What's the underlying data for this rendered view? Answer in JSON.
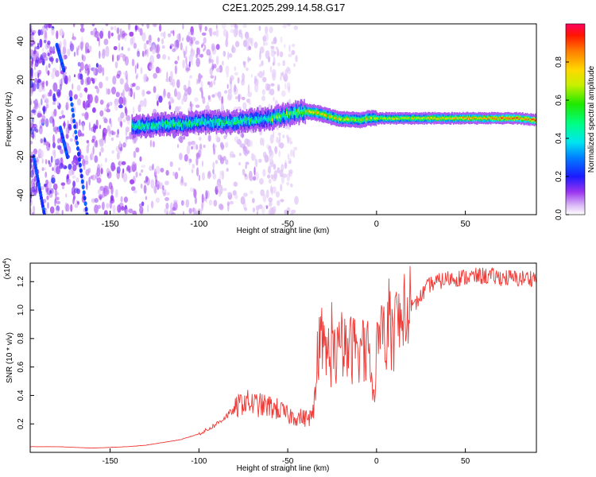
{
  "title": "C2E1.2025.299.14.58.G17",
  "chart_data": [
    {
      "type": "heatmap",
      "xlabel": "Height of straight line (km)",
      "ylabel": "Frequency (Hz)",
      "xlim": [
        -195,
        90
      ],
      "ylim": [
        -50,
        49
      ],
      "xticks": [
        -150,
        -100,
        -50,
        0,
        50
      ],
      "yticks": [
        -40,
        -20,
        0,
        20,
        40
      ],
      "ridge": {
        "x": [
          -138,
          -130,
          -120,
          -110,
          -100,
          -90,
          -80,
          -70,
          -60,
          -50,
          -45,
          -40,
          -35,
          -30,
          -25,
          -20,
          -15,
          -10,
          -5,
          0,
          20,
          40,
          60,
          80,
          90
        ],
        "freq": [
          -4,
          -4,
          -3,
          -3,
          -2,
          -2,
          -2,
          -1,
          0,
          2,
          3,
          3.5,
          3,
          2,
          0.5,
          -0.5,
          -0.5,
          -1,
          0,
          0,
          0,
          0,
          0,
          0,
          -1
        ]
      },
      "colorbar": {
        "label": "Normalized spectral amplitude",
        "range": [
          0,
          1
        ],
        "ticks": [
          0.0,
          0.2,
          0.4,
          0.6,
          0.8
        ]
      }
    },
    {
      "type": "line",
      "xlabel": "Height of straight line (km)",
      "ylabel": "SNR (10 * v/v)",
      "yscale_label": "(x10",
      "yscale_exp": "4",
      "xlim": [
        -195,
        90
      ],
      "ylim": [
        0,
        1.33
      ],
      "xticks": [
        -150,
        -100,
        -50,
        0,
        50
      ],
      "yticks": [
        "0.2",
        "0.4",
        "0.6",
        "0.8",
        "1.0",
        "1.2"
      ],
      "series": [
        {
          "name": "SNR",
          "color": "#ef3a36",
          "x": [
            -195,
            -180,
            -160,
            -140,
            -130,
            -120,
            -110,
            -100,
            -95,
            -90,
            -85,
            -80,
            -75,
            -70,
            -65,
            -60,
            -55,
            -50,
            -45,
            -40,
            -36,
            -33,
            -30,
            -25,
            -20,
            -15,
            -10,
            -5,
            -2,
            0,
            5,
            10,
            15,
            20,
            25,
            30,
            35,
            40,
            50,
            60,
            70,
            80,
            90
          ],
          "y": [
            0.04,
            0.04,
            0.03,
            0.04,
            0.05,
            0.07,
            0.09,
            0.13,
            0.16,
            0.2,
            0.25,
            0.3,
            0.36,
            0.34,
            0.33,
            0.32,
            0.3,
            0.26,
            0.25,
            0.24,
            0.25,
            0.55,
            0.72,
            0.68,
            0.7,
            0.72,
            0.75,
            0.7,
            0.35,
            0.72,
            0.8,
            0.88,
            0.92,
            1.0,
            1.1,
            1.18,
            1.2,
            1.22,
            1.23,
            1.24,
            1.23,
            1.22,
            1.23
          ]
        }
      ]
    }
  ]
}
